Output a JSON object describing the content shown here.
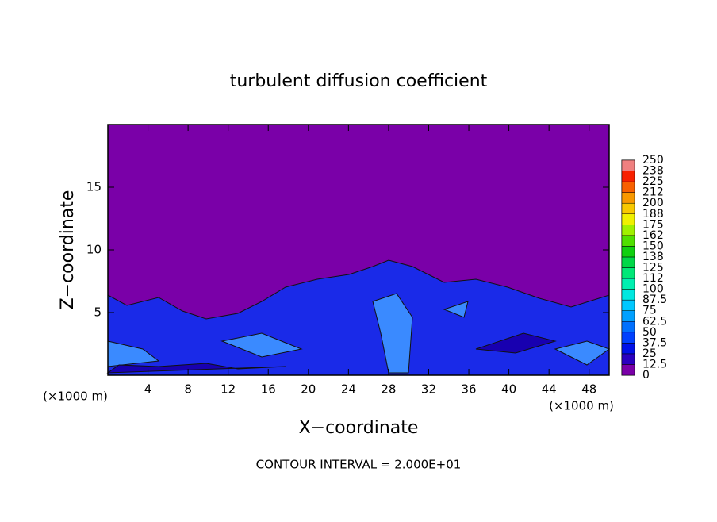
{
  "chart_data": {
    "type": "contour",
    "title": "turbulent diffusion coefficient",
    "xlabel": "X−coordinate",
    "ylabel": "Z−coordinate",
    "x_unit_label": "(×1000 m)",
    "y_unit_label": "(×1000 m)",
    "footer": "CONTOUR INTERVAL = 2.000E+01",
    "xlim": [
      0,
      50
    ],
    "xticks": [
      4,
      8,
      12,
      16,
      20,
      24,
      28,
      32,
      36,
      40,
      44,
      48
    ],
    "ylim": [
      0,
      20
    ],
    "yticks": [
      5,
      10,
      15
    ],
    "colorbar": {
      "levels": [
        0,
        12.5,
        25,
        37.5,
        50,
        62.5,
        75,
        87.5,
        100,
        112,
        125,
        138,
        150,
        162,
        175,
        188,
        200,
        212,
        225,
        238,
        250
      ],
      "colors": [
        "#7a00a8",
        "#2a00c0",
        "#0010e8",
        "#0040ff",
        "#0070ff",
        "#00a0ff",
        "#00c8ff",
        "#00e8e0",
        "#00f0b0",
        "#00e878",
        "#00d848",
        "#10d010",
        "#50e000",
        "#a0f000",
        "#f0f000",
        "#f8c800",
        "#f89800",
        "#f86000",
        "#f82000",
        "#f08080"
      ]
    }
  }
}
